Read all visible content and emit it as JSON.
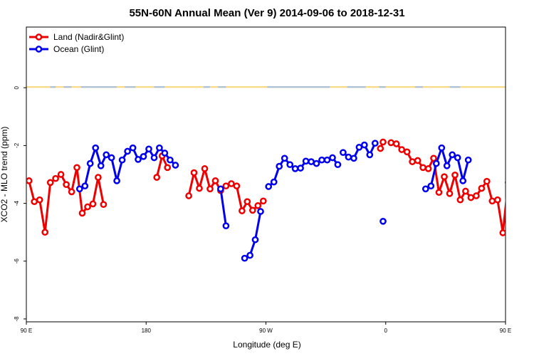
{
  "chart_data": {
    "type": "line",
    "title": "55N-60N Annual Mean (Ver 9)   2014-09-06 to 2018-12-31",
    "xlabel": "Longitude (deg E)",
    "ylabel": "XCO2 - MLO trend (ppm)",
    "xlim": [
      90,
      450
    ],
    "ylim": [
      -8.1,
      2.1
    ],
    "x_ticks": [
      {
        "value": 90,
        "label": "90 E"
      },
      {
        "value": 180,
        "label": "180"
      },
      {
        "value": 270,
        "label": "90 W"
      },
      {
        "value": 360,
        "label": "0"
      },
      {
        "value": 450,
        "label": "90 E"
      },
      {
        "value": 540,
        "label": "180"
      }
    ],
    "y_ticks": [
      {
        "value": 0,
        "label": "0"
      },
      {
        "value": -2,
        "label": "-2"
      },
      {
        "value": -4,
        "label": "-4"
      },
      {
        "value": -6,
        "label": "-6"
      },
      {
        "value": -8,
        "label": "-8"
      }
    ],
    "legend": {
      "position": "top-left"
    },
    "land_ocean_mask": {
      "y": 0.05,
      "land_color": "#f9d67a",
      "ocean_color": "#a7bedb",
      "ocean_spans": [
        [
          108,
          112
        ],
        [
          118,
          124
        ],
        [
          131,
          158
        ],
        [
          164,
          172
        ],
        [
          186,
          194
        ],
        [
          223,
          228
        ],
        [
          234,
          240
        ],
        [
          271,
          318
        ],
        [
          331,
          345
        ],
        [
          355,
          360
        ],
        [
          382,
          388
        ],
        [
          408,
          416
        ],
        [
          458,
          466
        ],
        [
          474,
          482
        ],
        [
          506,
          512
        ],
        [
          522,
          528
        ]
      ]
    },
    "series": [
      {
        "name": "Land (Nadir&Glint)",
        "color": "#ee0000",
        "segments": [
          [
            [
              92,
              -3.22
            ],
            [
              96,
              -3.94
            ],
            [
              100,
              -3.88
            ],
            [
              104,
              -5.0
            ],
            [
              108,
              -3.28
            ],
            [
              112,
              -3.14
            ],
            [
              116,
              -3.0
            ],
            [
              120,
              -3.35
            ],
            [
              124,
              -3.6
            ],
            [
              128,
              -2.76
            ],
            [
              132,
              -4.34
            ],
            [
              136,
              -4.12
            ],
            [
              140,
              -4.02
            ],
            [
              144,
              -3.1
            ],
            [
              148,
              -4.04
            ]
          ],
          [
            [
              188,
              -3.1
            ],
            [
              192,
              -2.36
            ],
            [
              196,
              -2.76
            ]
          ],
          [
            [
              212,
              -3.74
            ],
            [
              216,
              -2.94
            ],
            [
              220,
              -3.48
            ],
            [
              224,
              -2.8
            ],
            [
              228,
              -3.5
            ],
            [
              232,
              -3.22
            ],
            [
              236,
              -3.56
            ],
            [
              240,
              -3.4
            ],
            [
              244,
              -3.32
            ],
            [
              248,
              -3.4
            ],
            [
              252,
              -4.26
            ],
            [
              256,
              -3.94
            ],
            [
              260,
              -4.24
            ],
            [
              264,
              -4.08
            ],
            [
              268,
              -3.92
            ]
          ],
          [
            [
              356,
              -2.1
            ],
            [
              358,
              -1.88
            ]
          ],
          [
            [
              364,
              -1.9
            ],
            [
              368,
              -1.94
            ],
            [
              372,
              -2.14
            ],
            [
              376,
              -2.22
            ],
            [
              380,
              -2.56
            ],
            [
              384,
              -2.52
            ],
            [
              388,
              -2.76
            ],
            [
              392,
              -2.8
            ],
            [
              396,
              -2.44
            ],
            [
              400,
              -3.62
            ],
            [
              404,
              -3.08
            ],
            [
              408,
              -3.66
            ],
            [
              412,
              -3.02
            ],
            [
              416,
              -3.88
            ],
            [
              420,
              -3.58
            ],
            [
              424,
              -3.8
            ],
            [
              428,
              -3.74
            ],
            [
              432,
              -3.48
            ],
            [
              436,
              -3.24
            ],
            [
              440,
              -3.92
            ],
            [
              444,
              -3.88
            ],
            [
              448,
              -5.02
            ],
            [
              452,
              -3.28
            ],
            [
              456,
              -3.14
            ],
            [
              460,
              -3.0
            ],
            [
              464,
              -3.35
            ],
            [
              468,
              -3.6
            ],
            [
              472,
              -2.76
            ],
            [
              476,
              -4.34
            ],
            [
              480,
              -4.12
            ],
            [
              484,
              -4.02
            ],
            [
              488,
              -3.1
            ],
            [
              492,
              -4.04
            ]
          ]
        ]
      },
      {
        "name": "Ocean (Glint)",
        "color": "#0000ee",
        "segments": [
          [
            [
              130,
              -3.5
            ],
            [
              134,
              -3.4
            ],
            [
              138,
              -2.62
            ],
            [
              142,
              -2.08
            ],
            [
              146,
              -2.7
            ],
            [
              150,
              -2.32
            ],
            [
              154,
              -2.42
            ],
            [
              158,
              -3.22
            ],
            [
              162,
              -2.5
            ],
            [
              166,
              -2.2
            ],
            [
              170,
              -2.08
            ],
            [
              174,
              -2.48
            ],
            [
              178,
              -2.38
            ],
            [
              182,
              -2.12
            ],
            [
              186,
              -2.42
            ],
            [
              190,
              -2.08
            ],
            [
              194,
              -2.26
            ],
            [
              198,
              -2.5
            ],
            [
              202,
              -2.68
            ]
          ],
          [
            [
              236,
              -3.5
            ],
            [
              240,
              -4.78
            ]
          ],
          [
            [
              254,
              -5.9
            ],
            [
              258,
              -5.8
            ],
            [
              262,
              -5.26
            ],
            [
              266,
              -4.28
            ]
          ],
          [
            [
              272,
              -3.42
            ],
            [
              276,
              -3.26
            ],
            [
              280,
              -2.72
            ],
            [
              284,
              -2.44
            ],
            [
              288,
              -2.66
            ],
            [
              292,
              -2.8
            ],
            [
              296,
              -2.78
            ],
            [
              300,
              -2.54
            ],
            [
              304,
              -2.56
            ],
            [
              308,
              -2.62
            ],
            [
              312,
              -2.5
            ],
            [
              316,
              -2.5
            ],
            [
              320,
              -2.42
            ],
            [
              324,
              -2.66
            ]
          ],
          [
            [
              328,
              -2.24
            ],
            [
              332,
              -2.4
            ],
            [
              336,
              -2.44
            ],
            [
              340,
              -2.06
            ],
            [
              344,
              -1.98
            ],
            [
              348,
              -2.32
            ],
            [
              352,
              -1.92
            ]
          ],
          [
            [
              358,
              -4.62
            ]
          ],
          [
            [
              390,
              -3.5
            ],
            [
              394,
              -3.4
            ],
            [
              398,
              -2.62
            ],
            [
              402,
              -2.08
            ],
            [
              406,
              -2.7
            ],
            [
              410,
              -2.32
            ],
            [
              414,
              -2.42
            ],
            [
              418,
              -3.22
            ],
            [
              422,
              -2.5
            ]
          ]
        ]
      }
    ]
  }
}
